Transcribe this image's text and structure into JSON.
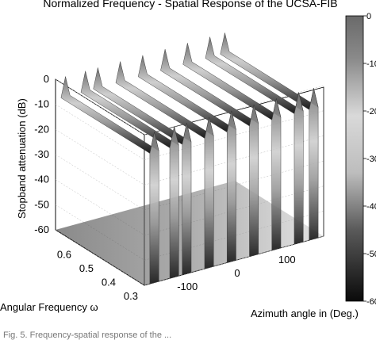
{
  "chart_data": {
    "type": "surface",
    "title": "Normalized Frequency - Spatial Response of the UCSA-FIB",
    "zlabel": "Stopband attenuation (dB)",
    "xlabel": "Angular Frequency ω",
    "ylabel": "Azimuth angle in (Deg.)",
    "z_ticks": [
      "0",
      "-10",
      "-20",
      "-30",
      "-40",
      "-50",
      "-60"
    ],
    "freq_ticks": [
      "0.6",
      "0.5",
      "0.4",
      "0.3"
    ],
    "azimuth_ticks": [
      "-100",
      "0",
      "100"
    ],
    "colorbar": {
      "range": [
        -60,
        0
      ],
      "ticks": [
        "0",
        "-10",
        "-20",
        "-30",
        "-40",
        "-50",
        "-60"
      ]
    },
    "grid": true,
    "surface_ridges_azimuth_deg": [
      -160,
      -120,
      -95,
      -50,
      -5,
      40,
      85,
      130,
      160
    ],
    "surface_ridge_peak_db": [
      0,
      0,
      0,
      0,
      0,
      0,
      0,
      0,
      0
    ],
    "surface_floor_db": -60,
    "frequency_range": [
      0.3,
      0.7
    ],
    "azimuth_range": [
      -180,
      180
    ]
  },
  "caption": "Fig. 5. Frequency-spatial response of the ..."
}
